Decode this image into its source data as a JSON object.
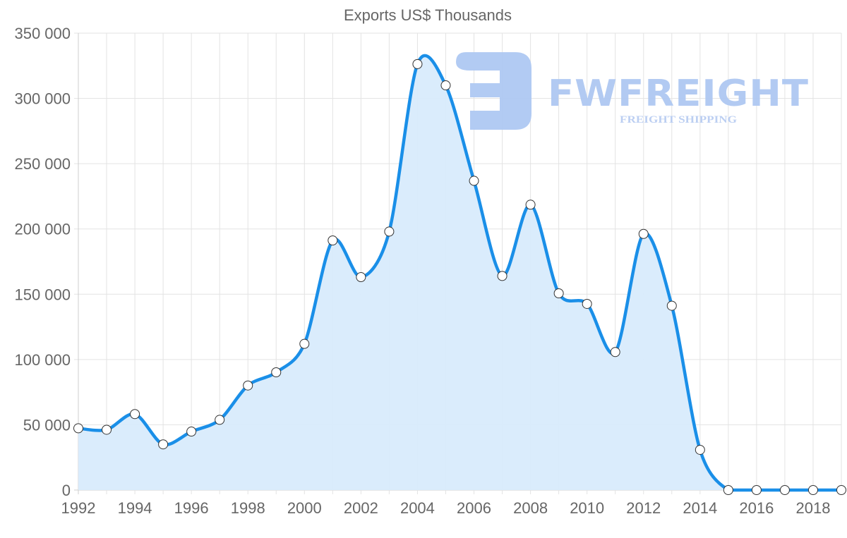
{
  "chart_data": {
    "type": "line",
    "title": "Exports US$ Thousands",
    "xlabel": "",
    "ylabel": "",
    "x": [
      1992,
      1993,
      1994,
      1995,
      1996,
      1997,
      1998,
      1999,
      2000,
      2001,
      2002,
      2003,
      2004,
      2005,
      2006,
      2007,
      2008,
      2009,
      2010,
      2011,
      2012,
      2013,
      2014,
      2015,
      2016,
      2017,
      2018,
      2019
    ],
    "series": [
      {
        "name": "Exports US$ Thousands",
        "values": [
          47300,
          46200,
          58200,
          35000,
          44800,
          53800,
          80100,
          90200,
          112000,
          191200,
          163100,
          198000,
          326300,
          310000,
          236900,
          164000,
          218600,
          150700,
          142600,
          105700,
          196200,
          141200,
          30800,
          0,
          0,
          0,
          0,
          0
        ],
        "line_color": "#1a8fe8",
        "fill_color": "#d8ebfc",
        "marker": "circle-white"
      }
    ],
    "ylim": [
      0,
      350000
    ],
    "yticks": [
      0,
      50000,
      100000,
      150000,
      200000,
      250000,
      300000,
      350000
    ],
    "ytick_labels": [
      "0",
      "50 000",
      "100 000",
      "150 000",
      "200 000",
      "250 000",
      "300 000",
      "350 000"
    ],
    "xticks": [
      1992,
      1994,
      1996,
      1998,
      2000,
      2002,
      2004,
      2006,
      2008,
      2010,
      2012,
      2014,
      2016,
      2018
    ],
    "xtick_labels": [
      "1992",
      "1994",
      "1996",
      "1998",
      "2000",
      "2002",
      "2004",
      "2006",
      "2008",
      "2010",
      "2012",
      "2014",
      "2016",
      "2018"
    ],
    "grid": true,
    "legend": "none",
    "filled_area": true
  },
  "watermark": {
    "brand": "FWFREIGHT",
    "tagline": "FREIGHT SHIPPING",
    "color": "#aec8f2"
  }
}
